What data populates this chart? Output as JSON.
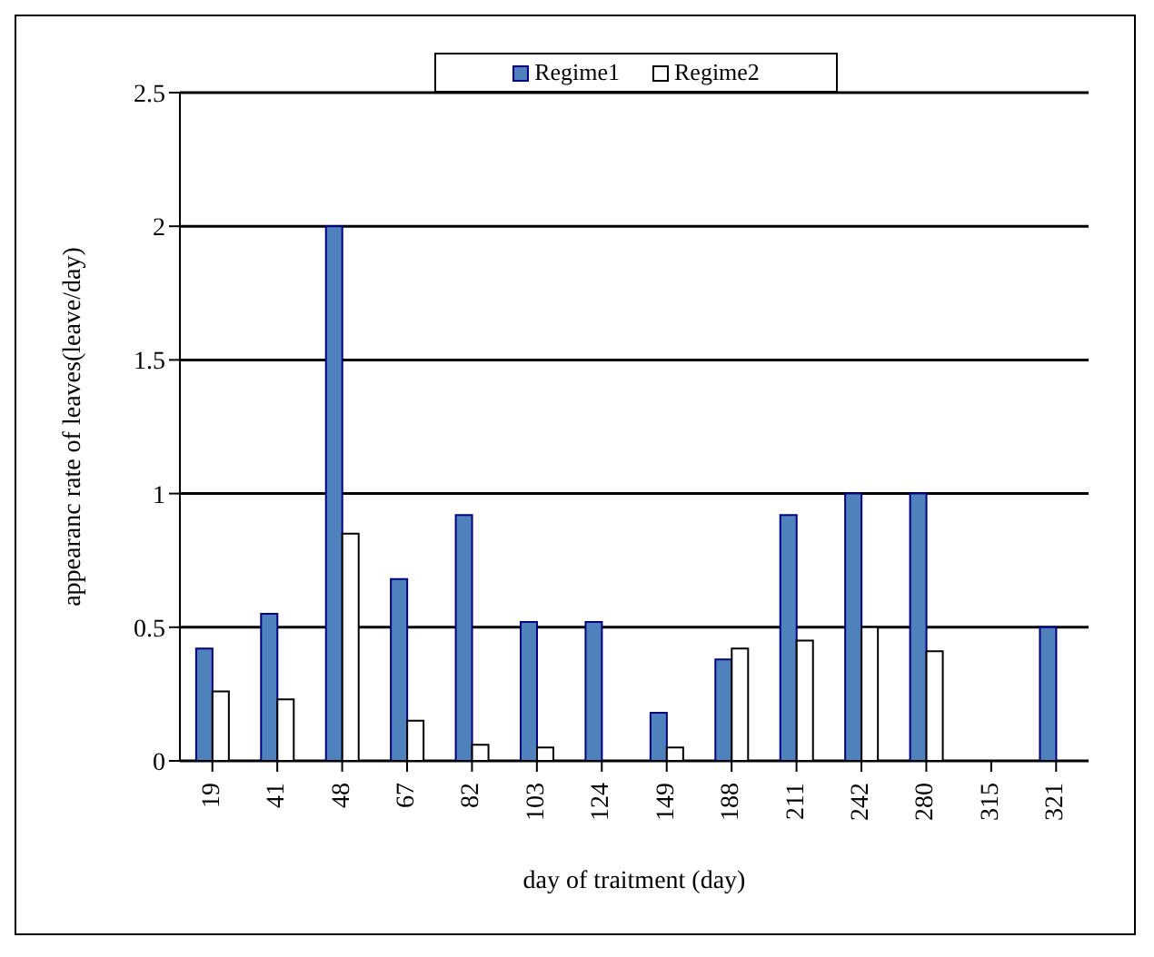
{
  "chart_data": {
    "type": "bar",
    "xlabel": "day of traitment (day)",
    "ylabel": "appearanc rate of leaves(leave/day)",
    "categories": [
      "19",
      "41",
      "48",
      "67",
      "82",
      "103",
      "124",
      "149",
      "188",
      "211",
      "242",
      "280",
      "315",
      "321"
    ],
    "series": [
      {
        "name": "Regime1",
        "color": "#4f81bd",
        "values": [
          0.42,
          0.55,
          2.0,
          0.68,
          0.92,
          0.52,
          0.52,
          0.18,
          0.38,
          0.92,
          1.0,
          1.0,
          0,
          0.5
        ]
      },
      {
        "name": "Regime2",
        "color": "#ffffff",
        "values": [
          0.26,
          0.23,
          0.85,
          0.15,
          0.06,
          0.05,
          0,
          0.05,
          0.42,
          0.45,
          0.5,
          0.41,
          0,
          0
        ]
      }
    ],
    "ylim": [
      0,
      2.5
    ],
    "yticks": [
      0,
      0.5,
      1,
      1.5,
      2,
      2.5
    ],
    "grid": "y",
    "legend": "top"
  }
}
